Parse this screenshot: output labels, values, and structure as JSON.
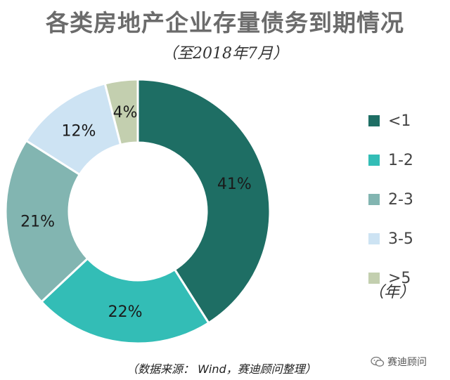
{
  "chart_data": {
    "type": "pie",
    "title": "各类房地产企业存量债务到期情况",
    "subtitle": "（至2018年7月）",
    "categories": [
      "<1",
      "1-2",
      "2-3",
      "3-5",
      ">5"
    ],
    "values": [
      41,
      22,
      21,
      12,
      4
    ],
    "value_labels": [
      "41%",
      "22%",
      "21%",
      "12%",
      "4%"
    ],
    "colors": [
      "#1e6e64",
      "#33bdb6",
      "#82b5b1",
      "#cde3f3",
      "#c3cfaf"
    ],
    "legend_unit": "（年）",
    "legend_position": "right",
    "style": "donut"
  },
  "source_note": "（数据来源： Wind，赛迪顾问整理）",
  "watermark": {
    "text": "赛迪顾问",
    "icon": "wechat-icon"
  }
}
